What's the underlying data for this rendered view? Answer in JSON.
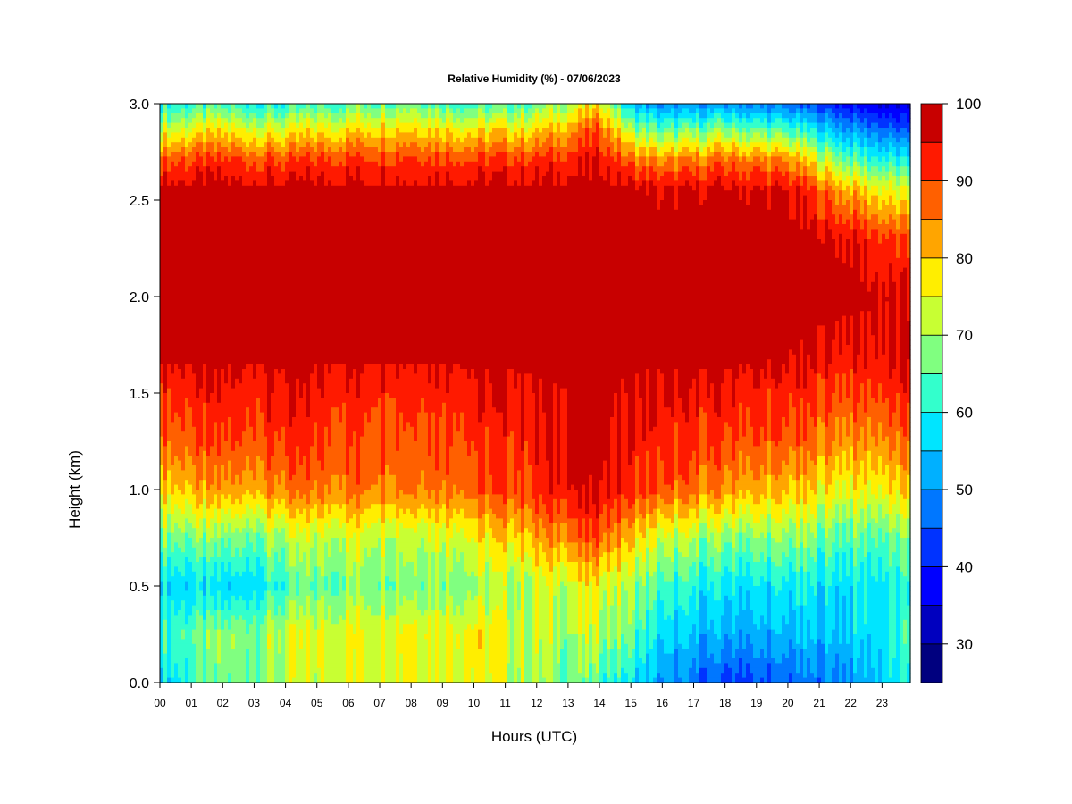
{
  "chart_data": {
    "type": "heatmap",
    "title": "Relative Humidity (%) - 07/06/2023",
    "xlabel": "Hours (UTC)",
    "ylabel": "Height (km)",
    "x_ticks": [
      "00",
      "01",
      "02",
      "03",
      "04",
      "05",
      "06",
      "07",
      "08",
      "09",
      "10",
      "11",
      "12",
      "13",
      "14",
      "15",
      "16",
      "17",
      "18",
      "19",
      "20",
      "21",
      "22",
      "23"
    ],
    "x_range": [
      0,
      23.9
    ],
    "y_ticks": [
      "0.0",
      "0.5",
      "1.0",
      "1.5",
      "2.0",
      "2.5",
      "3.0"
    ],
    "y_range": [
      0,
      3.0
    ],
    "colorbar": {
      "ticks": [
        "30",
        "40",
        "50",
        "60",
        "70",
        "80",
        "90",
        "100"
      ],
      "range": [
        25,
        100
      ],
      "levels": [
        25,
        30,
        35,
        40,
        45,
        50,
        55,
        60,
        65,
        70,
        75,
        80,
        85,
        90,
        95,
        100
      ],
      "colors": [
        "#00007f",
        "#0000bf",
        "#0000ff",
        "#0033ff",
        "#0077ff",
        "#00b0ff",
        "#00e5ff",
        "#33ffcc",
        "#80ff80",
        "#c8ff33",
        "#ffee00",
        "#ffa500",
        "#ff6000",
        "#ff1a00",
        "#c80000",
        "#7f0000"
      ]
    },
    "profiles": [
      {
        "hour": 0,
        "heights": [
          0,
          0.25,
          0.5,
          0.75,
          1.0,
          1.25,
          1.5,
          1.7,
          2.0,
          2.3,
          2.55,
          2.7,
          2.85,
          3.0
        ],
        "values": [
          57,
          63,
          58,
          68,
          80,
          88,
          92,
          97,
          97,
          97,
          97,
          90,
          75,
          60
        ]
      },
      {
        "hour": 2,
        "heights": [
          0,
          0.25,
          0.5,
          0.75,
          1.0,
          1.25,
          1.5,
          1.7,
          2.0,
          2.3,
          2.55,
          2.7,
          2.85,
          3.0
        ],
        "values": [
          66,
          67,
          55,
          66,
          82,
          89,
          93,
          97,
          97,
          97,
          97,
          91,
          78,
          62
        ]
      },
      {
        "hour": 4,
        "heights": [
          0,
          0.25,
          0.5,
          0.75,
          1.0,
          1.25,
          1.5,
          1.7,
          2.0,
          2.3,
          2.55,
          2.7,
          2.85,
          3.0
        ],
        "values": [
          70,
          72,
          62,
          70,
          85,
          91,
          94,
          97,
          97,
          97,
          97,
          90,
          76,
          60
        ]
      },
      {
        "hour": 6,
        "heights": [
          0,
          0.25,
          0.5,
          0.75,
          1.0,
          1.25,
          1.5,
          1.7,
          2.0,
          2.3,
          2.55,
          2.7,
          2.85,
          3.0
        ],
        "values": [
          75,
          76,
          68,
          74,
          87,
          90,
          93,
          97,
          97,
          97,
          97,
          92,
          80,
          65
        ]
      },
      {
        "hour": 8,
        "heights": [
          0,
          0.25,
          0.5,
          0.75,
          1.0,
          1.25,
          1.5,
          1.7,
          2.0,
          2.3,
          2.55,
          2.7,
          2.85,
          3.0
        ],
        "values": [
          77,
          78,
          69,
          74,
          87,
          90,
          93,
          97,
          97,
          97,
          97,
          92,
          82,
          68
        ]
      },
      {
        "hour": 10,
        "heights": [
          0,
          0.25,
          0.5,
          0.75,
          1.0,
          1.25,
          1.5,
          1.7,
          2.0,
          2.3,
          2.55,
          2.7,
          2.85,
          3.0
        ],
        "values": [
          76,
          77,
          69,
          76,
          88,
          91,
          94,
          97,
          97,
          97,
          97,
          91,
          79,
          62
        ]
      },
      {
        "hour": 12,
        "heights": [
          0,
          0.25,
          0.5,
          0.75,
          1.0,
          1.25,
          1.5,
          1.7,
          2.0,
          2.3,
          2.55,
          2.7,
          2.85,
          3.0
        ],
        "values": [
          70,
          72,
          72,
          82,
          92,
          93,
          95,
          97,
          97,
          97,
          97,
          92,
          80,
          65
        ]
      },
      {
        "hour": 13,
        "heights": [
          0,
          0.25,
          0.5,
          0.75,
          1.0,
          1.25,
          1.5,
          1.7,
          2.0,
          2.3,
          2.55,
          2.7,
          2.85,
          3.0
        ],
        "values": [
          66,
          70,
          74,
          86,
          95,
          96,
          96,
          97,
          97,
          97,
          97,
          93,
          84,
          70
        ]
      },
      {
        "hour": 14,
        "heights": [
          0,
          0.25,
          0.5,
          0.75,
          1.0,
          1.25,
          1.5,
          1.7,
          2.0,
          2.3,
          2.55,
          2.7,
          2.85,
          3.0
        ],
        "values": [
          64,
          72,
          76,
          89,
          96,
          97,
          97,
          97,
          97,
          97,
          97,
          95,
          90,
          78
        ]
      },
      {
        "hour": 15,
        "heights": [
          0,
          0.25,
          0.5,
          0.75,
          1.0,
          1.25,
          1.5,
          1.7,
          2.0,
          2.3,
          2.55,
          2.7,
          2.85,
          3.0
        ],
        "values": [
          58,
          66,
          70,
          80,
          92,
          94,
          95,
          97,
          97,
          97,
          97,
          88,
          72,
          54
        ]
      },
      {
        "hour": 16,
        "heights": [
          0,
          0.25,
          0.5,
          0.75,
          1.0,
          1.25,
          1.5,
          1.7,
          2.0,
          2.3,
          2.55,
          2.7,
          2.85,
          3.0
        ],
        "values": [
          50,
          56,
          62,
          72,
          88,
          92,
          94,
          97,
          97,
          97,
          95,
          84,
          66,
          48
        ]
      },
      {
        "hour": 18,
        "heights": [
          0,
          0.25,
          0.5,
          0.75,
          1.0,
          1.25,
          1.5,
          1.7,
          2.0,
          2.3,
          2.55,
          2.7,
          2.85,
          3.0
        ],
        "values": [
          43,
          52,
          58,
          68,
          84,
          90,
          94,
          97,
          97,
          97,
          96,
          88,
          70,
          50
        ]
      },
      {
        "hour": 20,
        "heights": [
          0,
          0.25,
          0.5,
          0.75,
          1.0,
          1.25,
          1.5,
          1.7,
          2.0,
          2.3,
          2.55,
          2.7,
          2.85,
          3.0
        ],
        "values": [
          45,
          53,
          58,
          68,
          80,
          88,
          92,
          96,
          97,
          97,
          95,
          85,
          65,
          46
        ]
      },
      {
        "hour": 22,
        "heights": [
          0,
          0.25,
          0.5,
          0.75,
          1.0,
          1.25,
          1.5,
          1.7,
          2.0,
          2.3,
          2.55,
          2.7,
          2.85,
          3.0
        ],
        "values": [
          50,
          56,
          58,
          65,
          76,
          84,
          90,
          94,
          97,
          95,
          82,
          66,
          52,
          38
        ]
      },
      {
        "hour": 23.9,
        "heights": [
          0,
          0.25,
          0.5,
          0.75,
          1.0,
          1.25,
          1.5,
          1.7,
          2.0,
          2.3,
          2.55,
          2.7,
          2.85,
          3.0
        ],
        "values": [
          60,
          62,
          60,
          66,
          78,
          86,
          92,
          96,
          95,
          88,
          72,
          58,
          45,
          32
        ]
      }
    ]
  }
}
